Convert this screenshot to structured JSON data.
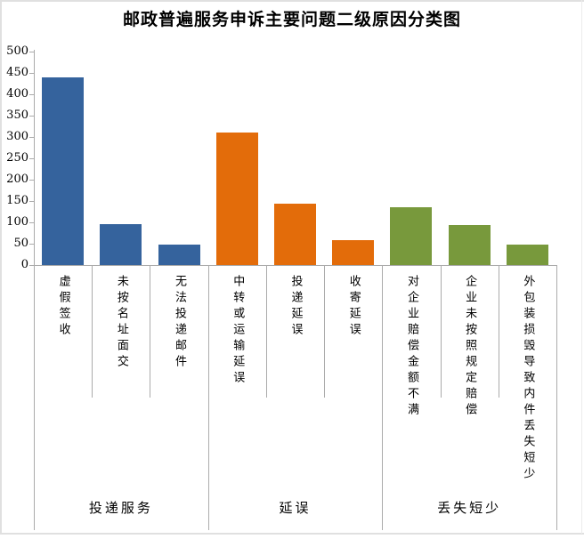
{
  "chart_data": {
    "type": "bar",
    "title": "邮政普遍服务申诉主要问题二级原因分类图",
    "xlabel": "",
    "ylabel": "",
    "ylim": [
      0,
      500
    ],
    "ytick_step": 50,
    "grid": false,
    "legend": "none",
    "axis_color": "#ababab",
    "groups": [
      {
        "label": "投递服务",
        "color": "#35639d",
        "categories": [
          "虚假签收",
          "未按名址面交",
          "无法投递邮件"
        ],
        "values": [
          440,
          95,
          47
        ]
      },
      {
        "label": "延误",
        "color": "#e36c0a",
        "categories": [
          "中转或运输延误",
          "投递延误",
          "收寄延误"
        ],
        "values": [
          311,
          144,
          58
        ]
      },
      {
        "label": "丢失短少",
        "color": "#78993c",
        "categories": [
          "对企业赔偿金额不满",
          "企业未按照规定赔偿",
          "外包装损毁导致内件丢失短少"
        ],
        "values": [
          135,
          93,
          47
        ]
      }
    ]
  }
}
